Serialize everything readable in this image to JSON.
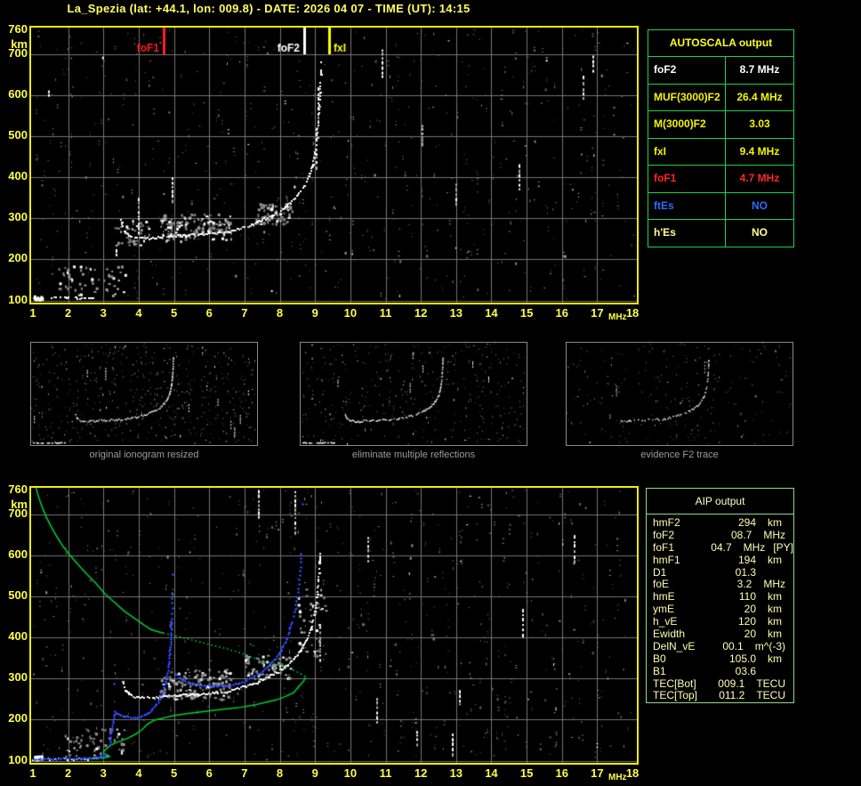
{
  "title": "La_Spezia (lat: +44.1, lon: 009.8) - DATE: 2026 04 07 - TIME (UT): 14:15",
  "plot": {
    "x_ticks": [
      "1",
      "2",
      "3",
      "4",
      "5",
      "6",
      "7",
      "8",
      "9",
      "10",
      "11",
      "12",
      "13",
      "14",
      "15",
      "16",
      "17",
      "18"
    ],
    "x_unit": "MHz",
    "y_ticks": [
      "760",
      "700",
      "600",
      "500",
      "400",
      "300",
      "200",
      "100"
    ],
    "y_tick_values": [
      760,
      700,
      600,
      500,
      400,
      300,
      200,
      100
    ],
    "y_unit": "km"
  },
  "autoscala": {
    "title": "AUTOSCALA output",
    "rows": [
      {
        "label": "foF2",
        "value": "8.7 MHz",
        "color": "#ffffff"
      },
      {
        "label": "MUF(3000)F2",
        "value": "26.4 MHz",
        "color": "#f5f500"
      },
      {
        "label": "M(3000)F2",
        "value": "3.03",
        "color": "#f5f500"
      },
      {
        "label": "fxI",
        "value": "9.4 MHz",
        "color": "#f5f500"
      },
      {
        "label": "foF1",
        "value": "4.7 MHz",
        "color": "#ff2626"
      },
      {
        "label": "ftEs",
        "value": "NO",
        "color": "#2f6bff"
      },
      {
        "label": "h'Es",
        "value": "NO",
        "color": "#ffff90"
      }
    ]
  },
  "aip": {
    "title": "AIP output",
    "rows": [
      {
        "label": "hmF2",
        "value": "294",
        "unit": "km",
        "extra": ""
      },
      {
        "label": "foF2",
        "value": "08.7",
        "unit": "MHz",
        "extra": ""
      },
      {
        "label": "foF1",
        "value": "04.7",
        "unit": "MHz",
        "extra": "[PY]"
      },
      {
        "label": "hmF1",
        "value": "194",
        "unit": "km",
        "extra": ""
      },
      {
        "label": "D1",
        "value": "01.3",
        "unit": "",
        "extra": ""
      },
      {
        "label": "foE",
        "value": "3.2",
        "unit": "MHz",
        "extra": ""
      },
      {
        "label": "hmE",
        "value": "110",
        "unit": "km",
        "extra": ""
      },
      {
        "label": "ymE",
        "value": "20",
        "unit": "km",
        "extra": ""
      },
      {
        "label": "h_vE",
        "value": "120",
        "unit": "km",
        "extra": ""
      },
      {
        "label": "Ewidth",
        "value": "20",
        "unit": "km",
        "extra": ""
      },
      {
        "label": "DelN_vE",
        "value": "00.1",
        "unit": "m^(-3)",
        "extra": ""
      },
      {
        "label": "B0",
        "value": "105.0",
        "unit": "km",
        "extra": ""
      },
      {
        "label": "B1",
        "value": "03.6",
        "unit": "",
        "extra": ""
      },
      {
        "label": "TEC[Bot]",
        "value": "009.1",
        "unit": "TECU",
        "extra": ""
      },
      {
        "label": "TEC[Top]",
        "value": "011.2",
        "unit": "TECU",
        "extra": ""
      }
    ]
  },
  "thumbnails": [
    {
      "caption": "original ionogram resized",
      "mode": 1,
      "seed": 101,
      "noise": 520
    },
    {
      "caption": "eliminate multiple reflections",
      "mode": 2,
      "seed": 202,
      "noise": 380
    },
    {
      "caption": "evidence F2 trace",
      "mode": 3,
      "seed": 303,
      "noise": 230
    }
  ],
  "chart_data": [
    {
      "id": "scaled_ionogram",
      "type": "scatter",
      "xlabel": "MHz",
      "ylabel": "km",
      "xlim": [
        1,
        18
      ],
      "ylim": [
        100,
        760
      ],
      "grid": true,
      "seed": 7,
      "noise_dots": 650,
      "markers": [
        {
          "label": "foF1",
          "f_MHz": 4.7,
          "color": "#ff2020",
          "align": "left"
        },
        {
          "label": "foF2",
          "f_MHz": 8.7,
          "color": "#ffffff",
          "align": "left"
        },
        {
          "label": "fxI",
          "f_MHz": 9.4,
          "color": "#ffff00",
          "align": "right"
        }
      ],
      "e_layer_fkm": [
        [
          1.02,
          105
        ],
        [
          1.6,
          105
        ],
        [
          2.2,
          106
        ],
        [
          2.92,
          107
        ]
      ],
      "echo_trace_fkm": [
        [
          3.5,
          295
        ],
        [
          3.55,
          278
        ],
        [
          3.62,
          266
        ],
        [
          3.72,
          259
        ],
        [
          3.85,
          255
        ],
        [
          4.0,
          252
        ],
        [
          4.2,
          250
        ],
        [
          4.45,
          252
        ],
        [
          4.7,
          255
        ],
        [
          5.0,
          257
        ],
        [
          5.3,
          259
        ],
        [
          5.6,
          261
        ],
        [
          5.9,
          262
        ],
        [
          6.2,
          264
        ],
        [
          6.5,
          267
        ],
        [
          6.8,
          273
        ],
        [
          7.1,
          281
        ],
        [
          7.4,
          292
        ],
        [
          7.7,
          304
        ],
        [
          8.0,
          318
        ],
        [
          8.25,
          333
        ],
        [
          8.45,
          350
        ],
        [
          8.65,
          372
        ],
        [
          8.8,
          396
        ],
        [
          8.92,
          425
        ],
        [
          9.0,
          458
        ],
        [
          9.06,
          495
        ],
        [
          9.1,
          535
        ],
        [
          9.13,
          575
        ],
        [
          9.15,
          615
        ],
        [
          9.16,
          650
        ],
        [
          9.17,
          685
        ]
      ],
      "clouds": [
        {
          "f": [
            4.6,
            6.6
          ],
          "km": [
            246,
            312
          ],
          "n": 150
        },
        {
          "f": [
            7.3,
            8.35
          ],
          "km": [
            288,
            338
          ],
          "n": 75
        },
        {
          "f": [
            3.3,
            4.3
          ],
          "km": [
            235,
            300
          ],
          "n": 40
        },
        {
          "f": [
            1.7,
            3.6
          ],
          "km": [
            112,
            185
          ],
          "n": 60
        }
      ],
      "streaks_f_km1_km2": [
        [
          3.38,
          212,
          236
        ],
        [
          4.0,
          255,
          350
        ],
        [
          4.95,
          338,
          400
        ],
        [
          9.05,
          420,
          520
        ],
        [
          9.1,
          540,
          620
        ],
        [
          10.9,
          648,
          712
        ],
        [
          13.0,
          333,
          385
        ],
        [
          14.8,
          365,
          432
        ],
        [
          16.6,
          590,
          648
        ],
        [
          16.9,
          662,
          697
        ],
        [
          12.05,
          480,
          528
        ],
        [
          1.45,
          598,
          612
        ]
      ]
    },
    {
      "id": "restored_profile",
      "type": "scatter",
      "xlabel": "MHz",
      "ylabel": "km",
      "xlim": [
        1,
        18
      ],
      "ylim": [
        100,
        760
      ],
      "grid": true,
      "seed": 13,
      "noise_dots": 700,
      "e_layer_fkm": [
        [
          1.0,
          103
        ],
        [
          1.6,
          103
        ],
        [
          2.3,
          104
        ],
        [
          3.0,
          105
        ]
      ],
      "echo_trace_fkm": [
        [
          3.55,
          295
        ],
        [
          3.62,
          272
        ],
        [
          3.72,
          262
        ],
        [
          3.85,
          257
        ],
        [
          4.0,
          254
        ],
        [
          4.2,
          252
        ],
        [
          4.45,
          254
        ],
        [
          4.7,
          256
        ],
        [
          5.0,
          258
        ],
        [
          5.3,
          260
        ],
        [
          5.6,
          262
        ],
        [
          5.9,
          263
        ],
        [
          6.2,
          265
        ],
        [
          6.5,
          268
        ],
        [
          6.8,
          274
        ],
        [
          7.1,
          282
        ],
        [
          7.4,
          293
        ],
        [
          7.7,
          305
        ],
        [
          8.0,
          319
        ],
        [
          8.25,
          334
        ],
        [
          8.45,
          352
        ],
        [
          8.65,
          375
        ],
        [
          8.8,
          400
        ],
        [
          8.92,
          430
        ],
        [
          9.0,
          462
        ],
        [
          9.06,
          500
        ],
        [
          9.1,
          540
        ],
        [
          9.13,
          580
        ],
        [
          9.15,
          615
        ]
      ],
      "clouds": [
        {
          "f": [
            4.6,
            6.6
          ],
          "km": [
            250,
            325
          ],
          "n": 150
        },
        {
          "f": [
            7.0,
            8.3
          ],
          "km": [
            300,
            360
          ],
          "n": 65
        },
        {
          "f": [
            1.8,
            3.6
          ],
          "km": [
            112,
            180
          ],
          "n": 55
        },
        {
          "f": [
            8.5,
            9.3
          ],
          "km": [
            350,
            520
          ],
          "n": 45
        }
      ],
      "streaks_f_km1_km2": [
        [
          8.44,
          655,
          757
        ],
        [
          9.15,
          345,
          428
        ],
        [
          10.75,
          195,
          252
        ],
        [
          12.9,
          112,
          166
        ],
        [
          14.9,
          400,
          470
        ],
        [
          16.35,
          588,
          650
        ],
        [
          10.5,
          585,
          645
        ],
        [
          7.4,
          695,
          760
        ],
        [
          13.1,
          238,
          272
        ],
        [
          11.9,
          138,
          172
        ]
      ],
      "profile_upper_fkm": [
        [
          1.08,
          768
        ],
        [
          1.16,
          744
        ],
        [
          1.26,
          719
        ],
        [
          1.38,
          694
        ],
        [
          1.52,
          670
        ],
        [
          1.68,
          646
        ],
        [
          1.86,
          622
        ],
        [
          2.06,
          600
        ],
        [
          2.28,
          578
        ],
        [
          2.52,
          556
        ],
        [
          2.78,
          533
        ],
        [
          3.05,
          506
        ],
        [
          3.3,
          487
        ],
        [
          3.6,
          464
        ],
        [
          3.9,
          446
        ],
        [
          4.15,
          431
        ],
        [
          4.36,
          419
        ],
        [
          4.7,
          411
        ],
        [
          5.1,
          403
        ],
        [
          5.62,
          392
        ],
        [
          6.1,
          381
        ],
        [
          6.45,
          374
        ],
        [
          6.9,
          362
        ],
        [
          7.2,
          352
        ],
        [
          7.6,
          342
        ],
        [
          8.06,
          331
        ],
        [
          8.35,
          322
        ],
        [
          8.55,
          314
        ],
        [
          8.68,
          308
        ],
        [
          8.74,
          303
        ]
      ],
      "profile_lower_fkm": [
        [
          8.74,
          303
        ],
        [
          8.66,
          292
        ],
        [
          8.52,
          279
        ],
        [
          8.4,
          266
        ],
        [
          8.15,
          256
        ],
        [
          7.9,
          248
        ],
        [
          7.6,
          242
        ],
        [
          7.3,
          236
        ],
        [
          6.9,
          230
        ],
        [
          6.45,
          226
        ],
        [
          5.87,
          220
        ],
        [
          5.3,
          214
        ],
        [
          4.95,
          209
        ],
        [
          4.75,
          205
        ],
        [
          4.66,
          203
        ],
        [
          4.45,
          199
        ],
        [
          4.25,
          189
        ],
        [
          4.1,
          176
        ],
        [
          3.9,
          164
        ],
        [
          3.7,
          155
        ],
        [
          3.5,
          148
        ],
        [
          3.35,
          144
        ],
        [
          3.2,
          137
        ],
        [
          3.07,
          128
        ],
        [
          3.0,
          121
        ],
        [
          3.02,
          116
        ],
        [
          3.12,
          113
        ],
        [
          3.18,
          110
        ],
        [
          3.05,
          107
        ],
        [
          2.85,
          106
        ],
        [
          2.55,
          105
        ],
        [
          2.3,
          105
        ]
      ],
      "restored_trace": {
        "flat": [
          [
            1.03,
            104
          ],
          [
            1.2,
            104
          ],
          [
            1.4,
            105
          ],
          [
            1.6,
            105
          ],
          [
            1.8,
            106
          ],
          [
            2.0,
            106
          ],
          [
            2.2,
            106
          ],
          [
            2.4,
            107
          ],
          [
            2.6,
            107
          ],
          [
            2.8,
            108
          ],
          [
            2.95,
            110
          ],
          [
            3.05,
            114
          ],
          [
            3.12,
            120
          ]
        ],
        "F1": [
          [
            3.17,
            140
          ],
          [
            3.21,
            165
          ],
          [
            3.26,
            192
          ],
          [
            3.32,
            220
          ],
          [
            3.42,
            214
          ],
          [
            3.55,
            210
          ],
          [
            3.7,
            207
          ],
          [
            3.9,
            206
          ],
          [
            4.05,
            208
          ],
          [
            4.2,
            213
          ],
          [
            4.35,
            223
          ],
          [
            4.5,
            238
          ],
          [
            4.6,
            253
          ],
          [
            4.7,
            273
          ],
          [
            4.77,
            296
          ],
          [
            4.82,
            321
          ],
          [
            4.86,
            349
          ],
          [
            4.89,
            379
          ],
          [
            4.91,
            412
          ],
          [
            4.93,
            447
          ],
          [
            4.945,
            484
          ],
          [
            4.955,
            520
          ]
        ],
        "F2": [
          [
            5.05,
            311
          ],
          [
            5.2,
            299
          ],
          [
            5.4,
            291
          ],
          [
            5.65,
            286
          ],
          [
            5.9,
            284
          ],
          [
            6.15,
            283
          ],
          [
            6.4,
            283
          ],
          [
            6.6,
            284
          ],
          [
            6.8,
            287
          ],
          [
            7.0,
            293
          ],
          [
            7.2,
            302
          ],
          [
            7.4,
            312
          ],
          [
            7.6,
            324
          ],
          [
            7.77,
            338
          ],
          [
            7.92,
            354
          ],
          [
            8.05,
            372
          ],
          [
            8.16,
            392
          ],
          [
            8.26,
            414
          ],
          [
            8.34,
            438
          ],
          [
            8.41,
            463
          ],
          [
            8.47,
            490
          ],
          [
            8.52,
            520
          ],
          [
            8.56,
            552
          ],
          [
            8.59,
            585
          ],
          [
            8.61,
            617
          ]
        ],
        "isolated": [
          [
            8.63,
            727
          ],
          [
            4.97,
            555
          ],
          [
            3.3,
            287
          ]
        ]
      },
      "derived": {
        "hmF2_km": 294,
        "foF2_MHz": 8.7,
        "foF1_MHz": 4.7,
        "hmF1_km": 194,
        "foE_MHz": 3.2,
        "hmE_km": 110,
        "B0_km": 105.0,
        "B1": 3.6,
        "TEC_bot_TECU": 9.1,
        "TEC_top_TECU": 11.2
      }
    }
  ],
  "colors": {
    "background": "#000000",
    "plot_border": "#efef00",
    "grid": "#767676",
    "axis_text": "#ffff46",
    "title_text": "#ffff5e",
    "profile_green": "#00d22c",
    "trace_blue": "#2e4bff",
    "autoscala_border": "#1dd24e",
    "aip_border": "#8fd98f",
    "caption_gray": "#9c9c9c"
  }
}
